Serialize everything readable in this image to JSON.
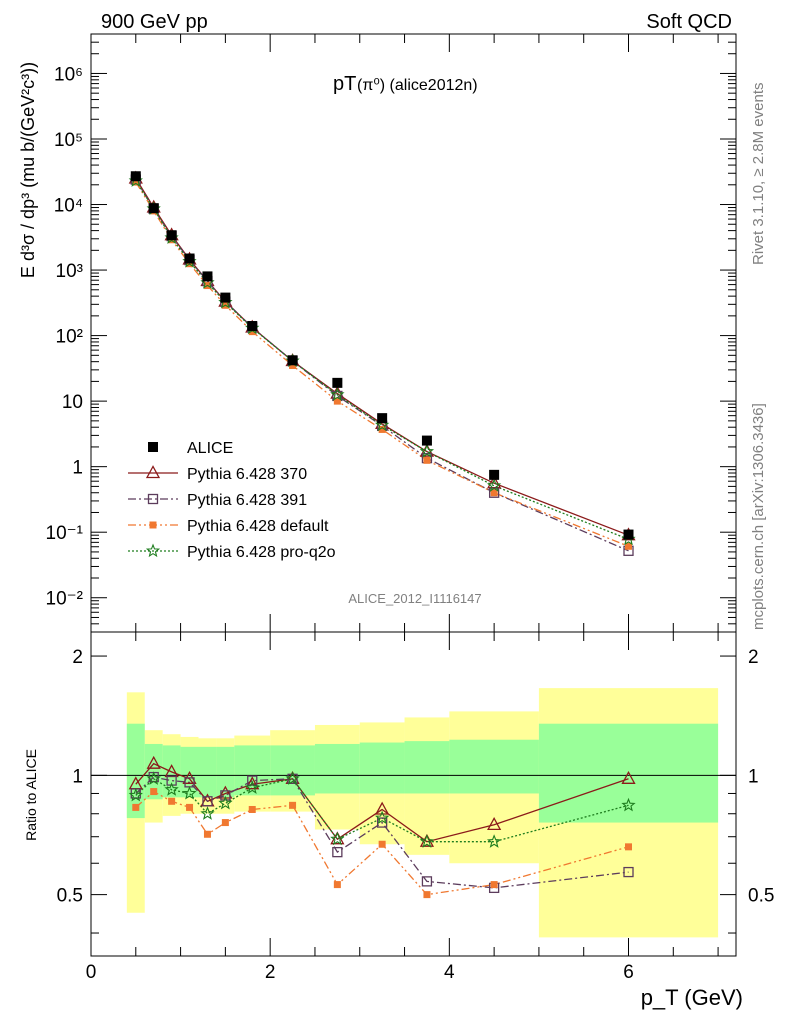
{
  "header": {
    "left": "900 GeV pp",
    "right": "Soft QCD"
  },
  "plot_title": {
    "main": "pT",
    "sub": "(π⁰) (alice2012n)"
  },
  "side_labels": {
    "rivet": "Rivet 3.1.10, ≥ 2.8M events",
    "mcplots": "mcplots.cern.ch [arXiv:1306.3436]"
  },
  "watermark": "ALICE_2012_I1116147",
  "colors": {
    "data": "#000000",
    "p370": "#8b1a1a",
    "p391": "#5c3c5c",
    "default": "#f07830",
    "proq2o": "#1e7d1e",
    "band_inner": "#99ff99",
    "band_outer": "#ffff99"
  },
  "chart_data": [
    {
      "type": "scatter",
      "panel": "main",
      "ylabel": "E d³σ / dp³ (mu b/(GeV²c³))",
      "yscale": "log",
      "ylim": [
        0.003,
        4000000
      ],
      "xlim": [
        0,
        7.2
      ],
      "ytick_labels": [
        "10⁻²",
        "10⁻¹",
        "1",
        "10",
        "10²",
        "10³",
        "10⁴",
        "10⁵",
        "10⁶"
      ],
      "x": [
        0.5,
        0.7,
        0.9,
        1.1,
        1.3,
        1.5,
        1.8,
        2.25,
        2.75,
        3.25,
        3.75,
        4.5,
        6.0
      ],
      "series": [
        {
          "name": "ALICE",
          "key": "data",
          "values": [
            27000,
            8800,
            3400,
            1500,
            800,
            380,
            140,
            42,
            19,
            5.5,
            2.5,
            0.75,
            0.092
          ]
        },
        {
          "name": "Pythia 6.428 370",
          "key": "p370",
          "values": [
            25000,
            9000,
            3400,
            1450,
            680,
            330,
            133,
            41,
            13,
            4.5,
            1.7,
            0.56,
            0.09
          ]
        },
        {
          "name": "Pythia 6.428 391",
          "key": "p391",
          "values": [
            24000,
            8600,
            3300,
            1420,
            680,
            330,
            133,
            41,
            12,
            4.2,
            1.35,
            0.4,
            0.052
          ]
        },
        {
          "name": "Pythia 6.428 default",
          "key": "default",
          "values": [
            22000,
            8000,
            2900,
            1250,
            580,
            290,
            115,
            35,
            10,
            3.7,
            1.25,
            0.4,
            0.061
          ]
        },
        {
          "name": "Pythia 6.428 pro-q2o",
          "key": "proq2o",
          "values": [
            23000,
            8600,
            3100,
            1350,
            640,
            320,
            130,
            41,
            12.5,
            4.3,
            1.7,
            0.51,
            0.078
          ]
        }
      ]
    },
    {
      "type": "scatter",
      "panel": "ratio",
      "ylabel": "Ratio to ALICE",
      "xlabel": "p_T (GeV)",
      "ylim": [
        0.35,
        2.3
      ],
      "xlim": [
        0,
        7.2
      ],
      "ytick_labels": [
        "0.5",
        "1",
        "2"
      ],
      "xtick_labels": [
        "0",
        "2",
        "4",
        "6"
      ],
      "x": [
        0.5,
        0.7,
        0.9,
        1.1,
        1.3,
        1.5,
        1.8,
        2.25,
        2.75,
        3.25,
        3.75,
        4.5,
        6.0
      ],
      "bands": {
        "edges": [
          0.4,
          0.6,
          0.8,
          1.0,
          1.2,
          1.4,
          1.6,
          2.0,
          2.5,
          3.0,
          3.5,
          4.0,
          5.0,
          7.0
        ],
        "inner_lo": [
          0.78,
          0.87,
          0.88,
          0.88,
          0.88,
          0.88,
          0.89,
          0.89,
          0.9,
          0.9,
          0.9,
          0.9,
          0.76
        ],
        "inner_hi": [
          1.35,
          1.2,
          1.19,
          1.18,
          1.18,
          1.18,
          1.19,
          1.19,
          1.2,
          1.21,
          1.22,
          1.23,
          1.35
        ],
        "outer_lo": [
          0.45,
          0.76,
          0.79,
          0.8,
          0.8,
          0.8,
          0.81,
          0.81,
          0.73,
          0.67,
          0.63,
          0.6,
          0.39
        ],
        "outer_hi": [
          1.62,
          1.3,
          1.27,
          1.25,
          1.24,
          1.24,
          1.26,
          1.3,
          1.34,
          1.36,
          1.4,
          1.45,
          1.66
        ]
      },
      "series": [
        {
          "name": "Pythia 6.428 370",
          "key": "p370",
          "values": [
            0.95,
            1.07,
            1.02,
            0.98,
            0.86,
            0.9,
            0.95,
            0.98,
            0.69,
            0.82,
            0.68,
            0.75,
            0.98
          ]
        },
        {
          "name": "Pythia 6.428 391",
          "key": "p391",
          "values": [
            0.9,
            0.99,
            0.97,
            0.96,
            0.86,
            0.89,
            0.97,
            0.98,
            0.64,
            0.76,
            0.54,
            0.52,
            0.57
          ]
        },
        {
          "name": "Pythia 6.428 default",
          "key": "default",
          "values": [
            0.83,
            0.91,
            0.86,
            0.83,
            0.71,
            0.76,
            0.82,
            0.84,
            0.53,
            0.67,
            0.5,
            0.53,
            0.66
          ]
        },
        {
          "name": "Pythia 6.428 pro-q2o",
          "key": "proq2o",
          "values": [
            0.89,
            0.98,
            0.92,
            0.9,
            0.8,
            0.85,
            0.93,
            0.98,
            0.69,
            0.78,
            0.68,
            0.68,
            0.84
          ]
        }
      ]
    }
  ]
}
